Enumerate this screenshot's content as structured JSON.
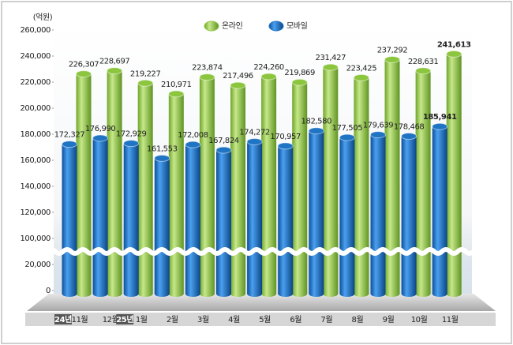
{
  "chart_data": {
    "type": "cylinder-bar",
    "y_label": "(억원)",
    "categories": [
      "11월",
      "12월",
      "1월",
      "2월",
      "3월",
      "4월",
      "5월",
      "6월",
      "7월",
      "8월",
      "9월",
      "10월",
      "11월"
    ],
    "year_labels": [
      "24년",
      null,
      "25년",
      null,
      null,
      null,
      null,
      null,
      null,
      null,
      null,
      null,
      null
    ],
    "series": [
      {
        "name": "온라인",
        "color": "#8cc63f",
        "values": [
          226307,
          228697,
          219227,
          210971,
          223874,
          217496,
          224260,
          219869,
          231427,
          223425,
          237292,
          228631,
          241613
        ],
        "value_labels": [
          "226,307",
          "228,697",
          "219,227",
          "210,971",
          "223,874",
          "217,496",
          "224,260",
          "219,869",
          "231,427",
          "223,425",
          "237,292",
          "228,631",
          "241,613"
        ]
      },
      {
        "name": "모바일",
        "color": "#1f74c4",
        "values": [
          172327,
          176990,
          172929,
          161553,
          172008,
          167824,
          174272,
          170957,
          182580,
          177505,
          179639,
          178468,
          185941
        ],
        "value_labels": [
          "172,327",
          "176,990",
          "172,929",
          "161,553",
          "172,008",
          "167,824",
          "174,272",
          "170,957",
          "182,580",
          "177,505",
          "179,639",
          "178,468",
          "185,941"
        ]
      }
    ],
    "ylim": [
      0,
      260000
    ],
    "axis_break": [
      20000,
      100000
    ],
    "yticks": [
      0,
      {
        "value": 20000,
        "label": "20,000"
      },
      {
        "value": 100000,
        "label": "100,000"
      },
      {
        "value": 120000,
        "label": "120,000"
      },
      {
        "value": 140000,
        "label": "140,000"
      },
      {
        "value": 160000,
        "label": "160,000"
      },
      {
        "value": 180000,
        "label": "180,000"
      },
      {
        "value": 200000,
        "label": "200,000"
      },
      {
        "value": 220000,
        "label": "220,000"
      },
      {
        "value": 240000,
        "label": "240,000"
      },
      {
        "value": 260000,
        "label": "260,000"
      }
    ],
    "legend": "top",
    "bold_last": true
  }
}
